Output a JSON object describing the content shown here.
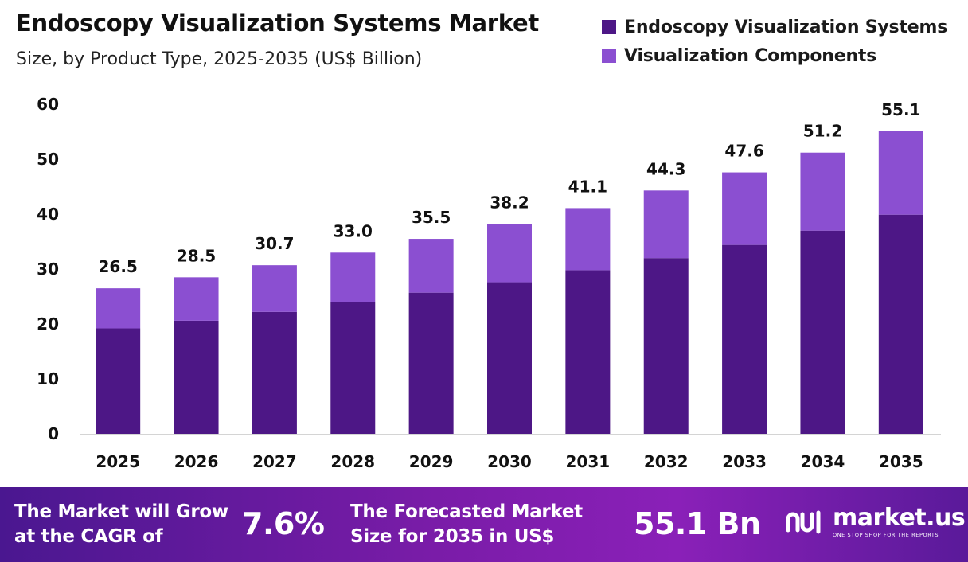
{
  "header": {
    "title": "Endoscopy Visualization Systems Market",
    "subtitle": "Size, by Product Type, 2025-2035 (US$ Billion)"
  },
  "legend": {
    "items": [
      {
        "label": "Endoscopy Visualization Systems",
        "color": "#4d1786"
      },
      {
        "label": "Visualization Components",
        "color": "#8b4fd1"
      }
    ]
  },
  "chart_data": {
    "type": "bar",
    "stacked": true,
    "categories": [
      "2025",
      "2026",
      "2027",
      "2028",
      "2029",
      "2030",
      "2031",
      "2032",
      "2033",
      "2034",
      "2035"
    ],
    "series": [
      {
        "name": "Endoscopy Visualization Systems",
        "color": "#4d1786",
        "values": [
          19.2,
          20.6,
          22.2,
          24.0,
          25.7,
          27.6,
          29.8,
          32.0,
          34.4,
          37.0,
          39.9
        ]
      },
      {
        "name": "Visualization Components",
        "color": "#8b4fd1",
        "values": [
          7.3,
          7.9,
          8.5,
          9.0,
          9.8,
          10.6,
          11.3,
          12.3,
          13.2,
          14.2,
          15.2
        ]
      }
    ],
    "totals": [
      26.5,
      28.5,
      30.7,
      33.0,
      35.5,
      38.2,
      41.1,
      44.3,
      47.6,
      51.2,
      55.1
    ],
    "total_labels": [
      "26.5",
      "28.5",
      "30.7",
      "33.0",
      "35.5",
      "38.2",
      "41.1",
      "44.3",
      "47.6",
      "51.2",
      "55.1"
    ],
    "ylim": [
      0,
      60
    ],
    "yticks": [
      0,
      10,
      20,
      30,
      40,
      50,
      60
    ],
    "grid": false,
    "legend_position": "top-right",
    "xlabel": "",
    "ylabel": ""
  },
  "footer": {
    "cagr_text_line1": "The Market will Grow",
    "cagr_text_line2": "at the CAGR of",
    "cagr_value": "7.6%",
    "forecast_text_line1": "The Forecasted Market",
    "forecast_text_line2": "Size for 2035 in US$",
    "forecast_value": "55.1 Bn",
    "brand_name": "market.us",
    "brand_tagline": "ONE STOP SHOP FOR THE REPORTS"
  }
}
